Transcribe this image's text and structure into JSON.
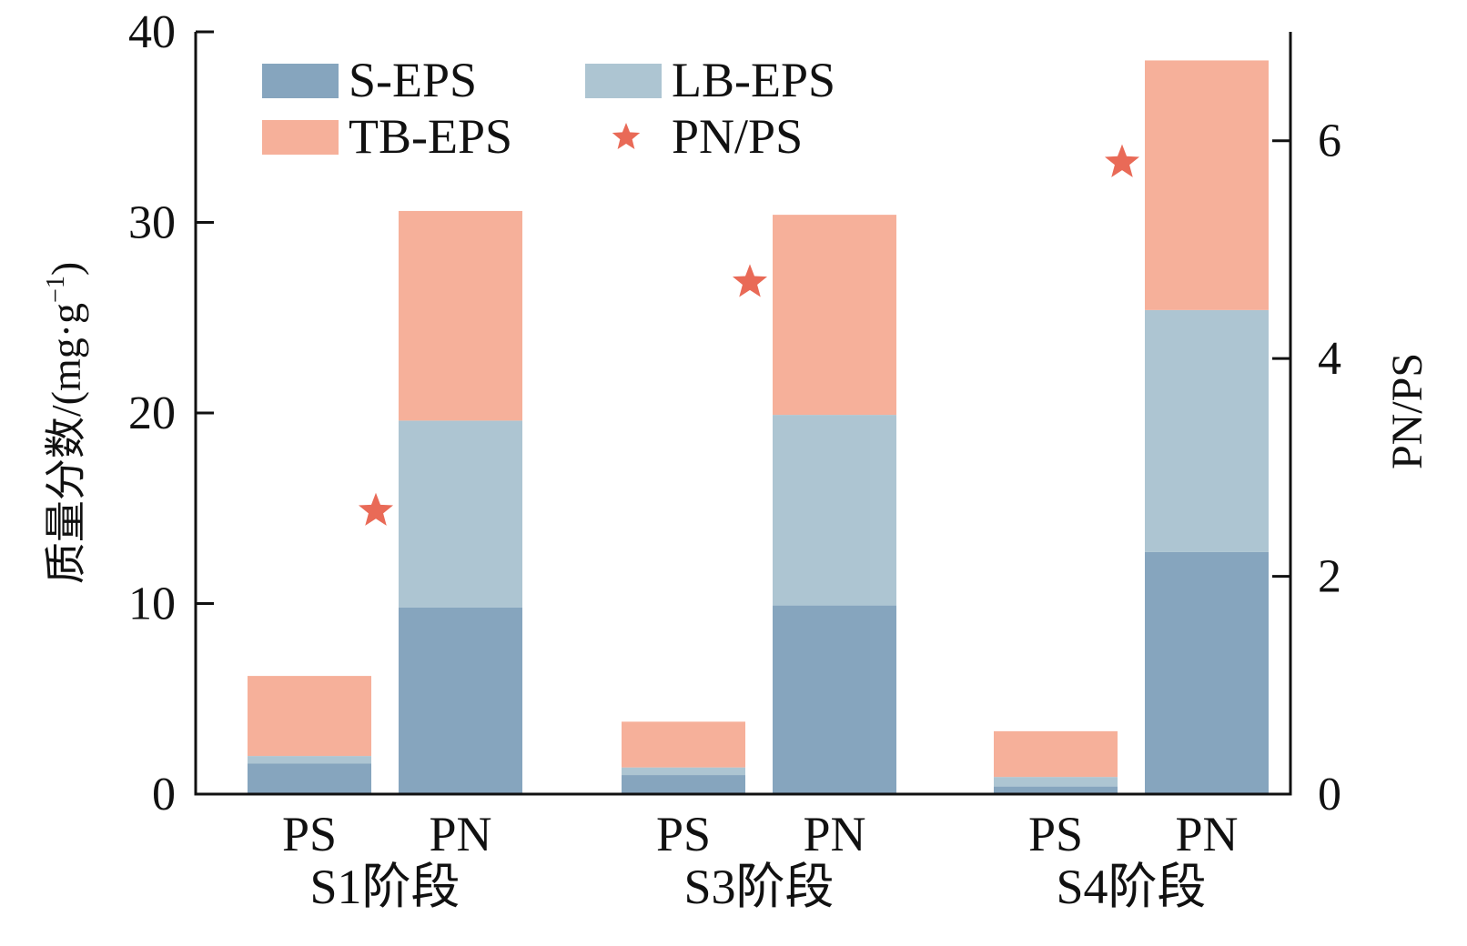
{
  "chart_data": {
    "type": "bar",
    "stacked": true,
    "groups": [
      {
        "label": "S1阶段",
        "bars": [
          "PS",
          "PN"
        ]
      },
      {
        "label": "S3阶段",
        "bars": [
          "PS",
          "PN"
        ]
      },
      {
        "label": "S4阶段",
        "bars": [
          "PS",
          "PN"
        ]
      }
    ],
    "series": [
      {
        "name": "S-EPS",
        "color": "#86a5be",
        "values": [
          1.6,
          9.8,
          1.0,
          9.9,
          0.4,
          12.7
        ]
      },
      {
        "name": "LB-EPS",
        "color": "#adc5d2",
        "values": [
          0.4,
          9.8,
          0.4,
          10.0,
          0.5,
          12.7
        ]
      },
      {
        "name": "TB-EPS",
        "color": "#f6b09a",
        "values": [
          4.2,
          11.0,
          2.4,
          10.5,
          2.4,
          13.1
        ]
      }
    ],
    "ratio_series": {
      "name": "PN/PS",
      "color": "#e96a57",
      "marker": "star",
      "values": [
        2.6,
        4.7,
        5.8
      ]
    },
    "ylabel": "质量分数/(mg·g",
    "ylabel_superscript": "−1",
    "ylabel_close": ")",
    "ylim": [
      0,
      40
    ],
    "yticks": [
      "0",
      "10",
      "20",
      "30",
      "40"
    ],
    "y2label": "PN/PS",
    "y2lim": [
      0,
      7
    ],
    "y2ticks": [
      "0",
      "2",
      "4",
      "6"
    ],
    "legend_position": "top-left",
    "grid": false
  }
}
